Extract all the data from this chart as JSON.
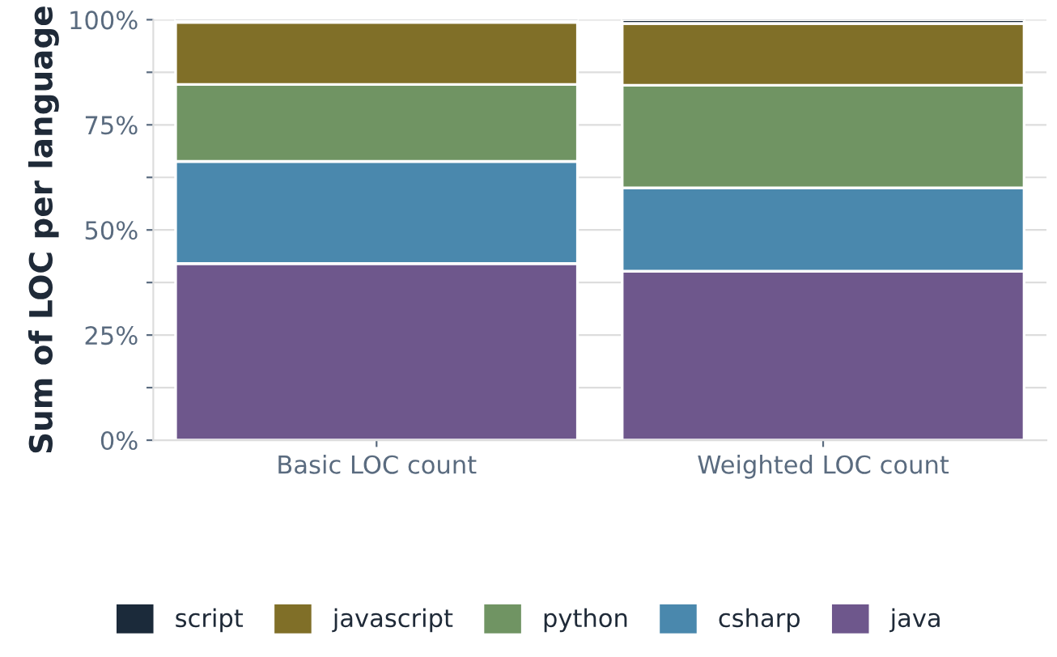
{
  "chart_data": {
    "type": "bar",
    "stacked": true,
    "ylabel": "Sum of LOC per language",
    "categories": [
      "Basic LOC count",
      "Weighted LOC count"
    ],
    "series": [
      {
        "name": "java",
        "color": "#6e578c",
        "values": [
          42.0,
          40.2
        ]
      },
      {
        "name": "csharp",
        "color": "#4a88ad",
        "values": [
          24.3,
          19.8
        ]
      },
      {
        "name": "python",
        "color": "#709463",
        "values": [
          18.3,
          24.4
        ]
      },
      {
        "name": "javascript",
        "color": "#806f28",
        "values": [
          14.8,
          14.7
        ]
      },
      {
        "name": "script",
        "color": "#1b2a3a",
        "values": [
          0.6,
          0.9
        ]
      }
    ],
    "ylim": [
      0,
      100
    ],
    "yticks": [
      {
        "value": 0,
        "label": "0%"
      },
      {
        "value": 12.5,
        "label": null
      },
      {
        "value": 25,
        "label": "25%"
      },
      {
        "value": 37.5,
        "label": null
      },
      {
        "value": 50,
        "label": "50%"
      },
      {
        "value": 62.5,
        "label": null
      },
      {
        "value": 75,
        "label": "75%"
      },
      {
        "value": 87.5,
        "label": null
      },
      {
        "value": 100,
        "label": "100%"
      }
    ],
    "grid": "y",
    "legend": "bottom"
  }
}
